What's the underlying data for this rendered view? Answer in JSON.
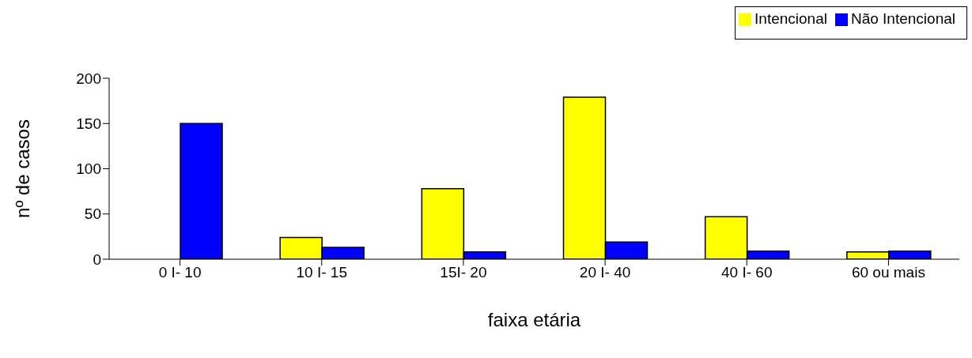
{
  "chart_data": {
    "type": "bar",
    "xlabel": "faixa etária",
    "ylabel": "nº de casos",
    "categories": [
      "0 I- 10",
      "10 I- 15",
      "15I- 20",
      "20 I- 40",
      "40 I- 60",
      "60 ou mais"
    ],
    "series": [
      {
        "name": "Intencional",
        "color": "#ffff00",
        "values": [
          0,
          24,
          78,
          179,
          47,
          8
        ]
      },
      {
        "name": "Não Intencional",
        "color": "#0000ff",
        "values": [
          150,
          13,
          8,
          19,
          9,
          9
        ]
      }
    ],
    "ylim": [
      0,
      200
    ],
    "yticks": [
      0,
      50,
      100,
      150,
      200
    ],
    "grid": false,
    "legend": "top right"
  }
}
